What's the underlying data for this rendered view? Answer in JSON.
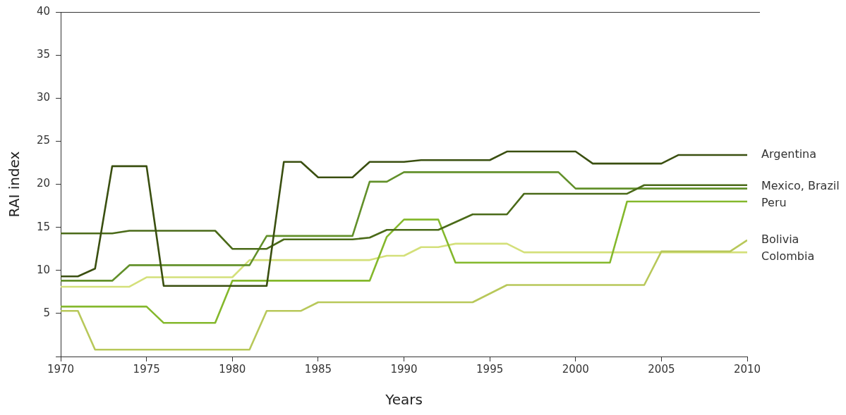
{
  "chart_data": {
    "type": "line",
    "xlabel": "Years",
    "ylabel": "RAI index",
    "x": [
      1970,
      1971,
      1972,
      1973,
      1974,
      1975,
      1976,
      1977,
      1978,
      1979,
      1980,
      1981,
      1982,
      1983,
      1984,
      1985,
      1986,
      1987,
      1988,
      1989,
      1990,
      1991,
      1992,
      1993,
      1994,
      1995,
      1996,
      1997,
      1998,
      1999,
      2000,
      2001,
      2002,
      2003,
      2004,
      2005,
      2006,
      2007,
      2008,
      2009,
      2010
    ],
    "xlim": [
      1970,
      2010
    ],
    "xticks": [
      1970,
      1975,
      1980,
      1985,
      1990,
      1995,
      2000,
      2005,
      2010
    ],
    "ylim": [
      0,
      40
    ],
    "yticks": [
      {
        "value": 0,
        "label": null
      },
      5,
      10,
      15,
      20,
      25,
      30,
      35,
      40
    ],
    "grid": false,
    "legend": false,
    "marker": "none",
    "line_style": "solid",
    "series": [
      {
        "name": "Argentina",
        "color": "#3a4f10",
        "values": [
          9.3,
          9.3,
          10.2,
          22.1,
          22.1,
          22.1,
          8.2,
          8.2,
          8.2,
          8.2,
          8.2,
          8.2,
          8.2,
          22.6,
          22.6,
          20.8,
          20.8,
          20.8,
          22.6,
          22.6,
          22.6,
          22.8,
          22.8,
          22.8,
          22.8,
          22.8,
          23.8,
          23.8,
          23.8,
          23.8,
          23.8,
          22.4,
          22.4,
          22.4,
          22.4,
          22.4,
          23.4,
          23.4,
          23.4,
          23.4,
          23.4
        ]
      },
      {
        "color": "#4a6a18",
        "values": [
          14.3,
          14.3,
          14.3,
          14.3,
          14.6,
          14.6,
          14.6,
          14.6,
          14.6,
          14.6,
          12.5,
          12.5,
          12.5,
          13.6,
          13.6,
          13.6,
          13.6,
          13.6,
          13.8,
          14.7,
          14.7,
          14.7,
          14.7,
          15.6,
          16.5,
          16.5,
          16.5,
          18.9,
          18.9,
          18.9,
          18.9,
          18.9,
          18.9,
          18.9,
          19.9,
          19.9,
          19.9,
          19.9,
          19.9,
          19.9,
          19.9
        ]
      },
      {
        "color": "#62902a",
        "values": [
          8.8,
          8.8,
          8.8,
          8.8,
          10.6,
          10.6,
          10.6,
          10.6,
          10.6,
          10.6,
          10.6,
          10.6,
          14.0,
          14.0,
          14.0,
          14.0,
          14.0,
          14.0,
          20.3,
          20.3,
          21.4,
          21.4,
          21.4,
          21.4,
          21.4,
          21.4,
          21.4,
          21.4,
          21.4,
          21.4,
          19.5,
          19.5,
          19.5,
          19.5,
          19.5,
          19.5,
          19.5,
          19.5,
          19.5,
          19.5,
          19.5
        ]
      },
      {
        "name": "Peru",
        "color": "#84b82c",
        "values": [
          5.8,
          5.8,
          5.8,
          5.8,
          5.8,
          5.8,
          3.9,
          3.9,
          3.9,
          3.9,
          8.8,
          8.8,
          8.8,
          8.8,
          8.8,
          8.8,
          8.8,
          8.8,
          8.8,
          13.9,
          15.9,
          15.9,
          15.9,
          10.9,
          10.9,
          10.9,
          10.9,
          10.9,
          10.9,
          10.9,
          10.9,
          10.9,
          10.9,
          18.0,
          18.0,
          18.0,
          18.0,
          18.0,
          18.0,
          18.0,
          18.0
        ]
      },
      {
        "name": "Bolivia",
        "color": "#b8c85a",
        "values": [
          5.3,
          5.3,
          0.8,
          0.8,
          0.8,
          0.8,
          0.8,
          0.8,
          0.8,
          0.8,
          0.8,
          0.8,
          5.3,
          5.3,
          5.3,
          6.3,
          6.3,
          6.3,
          6.3,
          6.3,
          6.3,
          6.3,
          6.3,
          6.3,
          6.3,
          7.3,
          8.3,
          8.3,
          8.3,
          8.3,
          8.3,
          8.3,
          8.3,
          8.3,
          8.3,
          12.2,
          12.2,
          12.2,
          12.2,
          12.2,
          13.5
        ]
      },
      {
        "name": "Colombia",
        "color": "#d4e07a",
        "values": [
          8.1,
          8.1,
          8.1,
          8.1,
          8.1,
          9.2,
          9.2,
          9.2,
          9.2,
          9.2,
          9.2,
          11.2,
          11.2,
          11.2,
          11.2,
          11.2,
          11.2,
          11.2,
          11.2,
          11.7,
          11.7,
          12.7,
          12.7,
          13.1,
          13.1,
          13.1,
          13.1,
          12.1,
          12.1,
          12.1,
          12.1,
          12.1,
          12.1,
          12.1,
          12.1,
          12.1,
          12.1,
          12.1,
          12.1,
          12.1,
          12.1
        ]
      }
    ],
    "annotations": [
      {
        "text": "Mexico, Brazil",
        "x": 2010,
        "y": 19.7
      }
    ]
  }
}
